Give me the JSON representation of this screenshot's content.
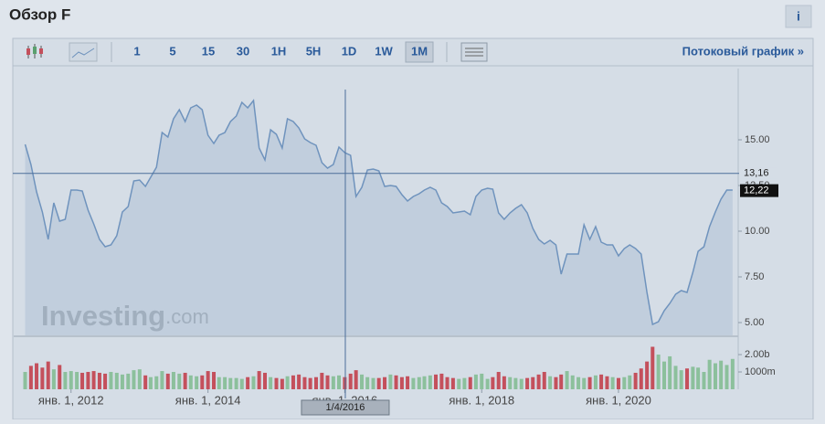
{
  "header": {
    "title": "Обзор F",
    "info": "i"
  },
  "toolbar": {
    "intervals": [
      "1",
      "5",
      "15",
      "30",
      "1H",
      "5H",
      "1D",
      "1W",
      "1M"
    ],
    "active_interval": "1M",
    "stream_link": "Потоковый график »"
  },
  "chart_data": {
    "type": "line",
    "watermark": {
      "brand": "Investing",
      "suffix": ".com"
    },
    "x": [
      "2011-05-01",
      "2011-06-01",
      "2011-07-01",
      "2011-08-01",
      "2011-09-01",
      "2011-10-01",
      "2011-11-01",
      "2011-12-01",
      "2012-01-01",
      "2012-02-01",
      "2012-03-01",
      "2012-04-01",
      "2012-05-01",
      "2012-06-01",
      "2012-07-01",
      "2012-08-01",
      "2012-09-01",
      "2012-10-01",
      "2012-11-01",
      "2012-12-01",
      "2013-01-01",
      "2013-02-01",
      "2013-03-01",
      "2013-04-01",
      "2013-05-01",
      "2013-06-01",
      "2013-07-01",
      "2013-08-01",
      "2013-09-01",
      "2013-10-01",
      "2013-11-01",
      "2013-12-01",
      "2014-01-01",
      "2014-02-01",
      "2014-03-01",
      "2014-04-01",
      "2014-05-01",
      "2014-06-01",
      "2014-07-01",
      "2014-08-01",
      "2014-09-01",
      "2014-10-01",
      "2014-11-01",
      "2014-12-01",
      "2015-01-01",
      "2015-02-01",
      "2015-03-01",
      "2015-04-01",
      "2015-05-01",
      "2015-06-01",
      "2015-07-01",
      "2015-08-01",
      "2015-09-01",
      "2015-10-01",
      "2015-11-01",
      "2015-12-01",
      "2016-01-01",
      "2016-02-01",
      "2016-03-01",
      "2016-04-01",
      "2016-05-01",
      "2016-06-01",
      "2016-07-01",
      "2016-08-01",
      "2016-09-01",
      "2016-10-01",
      "2016-11-01",
      "2016-12-01",
      "2017-01-01",
      "2017-02-01",
      "2017-03-01",
      "2017-04-01",
      "2017-05-01",
      "2017-06-01",
      "2017-07-01",
      "2017-08-01",
      "2017-09-01",
      "2017-10-01",
      "2017-11-01",
      "2017-12-01",
      "2018-01-01",
      "2018-02-01",
      "2018-03-01",
      "2018-04-01",
      "2018-05-01",
      "2018-06-01",
      "2018-07-01",
      "2018-08-01",
      "2018-09-01",
      "2018-10-01",
      "2018-11-01",
      "2018-12-01",
      "2019-01-01",
      "2019-02-01",
      "2019-03-01",
      "2019-04-01",
      "2019-05-01",
      "2019-06-01",
      "2019-07-01",
      "2019-08-01",
      "2019-09-01",
      "2019-10-01",
      "2019-11-01",
      "2019-12-01",
      "2020-01-01",
      "2020-02-01",
      "2020-03-01",
      "2020-04-01",
      "2020-05-01",
      "2020-06-01",
      "2020-07-01",
      "2020-08-01",
      "2020-09-01",
      "2020-10-01",
      "2020-11-01",
      "2020-12-01",
      "2021-01-01",
      "2021-02-01",
      "2021-03-01",
      "2021-04-01",
      "2021-05-01",
      "2021-06-01",
      "2021-07-01",
      "2021-08-01",
      "2021-09-01"
    ],
    "series": [
      {
        "color": "#6f93bd",
        "values": [
          14.75,
          13.65,
          12.15,
          11.05,
          9.55,
          11.55,
          10.55,
          10.65,
          12.25,
          12.25,
          12.2,
          11.15,
          10.4,
          9.55,
          9.15,
          9.25,
          9.75,
          11.05,
          11.35,
          12.75,
          12.8,
          12.45,
          12.95,
          13.5,
          15.4,
          15.15,
          16.15,
          16.65,
          16.0,
          16.75,
          16.9,
          16.65,
          15.25,
          14.8,
          15.25,
          15.4,
          16.0,
          16.3,
          17.05,
          16.75,
          17.15,
          14.55,
          13.9,
          15.55,
          15.3,
          14.55,
          16.15,
          16.0,
          15.65,
          15.05,
          14.85,
          14.7,
          13.75,
          13.45,
          13.65,
          14.6,
          14.3,
          14.15,
          11.9,
          12.4,
          13.35,
          13.4,
          13.3,
          12.45,
          12.5,
          12.45,
          12.0,
          11.65,
          11.9,
          12.05,
          12.25,
          12.4,
          12.25,
          11.55,
          11.35,
          11.0,
          11.05,
          11.1,
          10.9,
          11.9,
          12.25,
          12.35,
          12.3,
          11.0,
          10.65,
          11.0,
          11.25,
          11.45,
          11.0,
          10.15,
          9.55,
          9.3,
          9.5,
          9.25,
          7.65,
          8.75,
          8.75,
          8.75,
          10.35,
          9.55,
          10.25,
          9.4,
          9.25,
          9.25,
          8.65,
          9.05,
          9.25,
          9.05,
          8.75,
          6.65,
          4.9,
          5.05,
          5.65,
          6.05,
          6.55,
          6.75,
          6.65,
          7.75,
          8.9,
          9.15,
          10.25,
          11.05,
          11.75,
          12.25,
          12.25
        ]
      },
      {
        "axis": "y2",
        "up_color": "#8cc09c",
        "down_color": "#c4505c",
        "values": [
          1000,
          1350,
          1500,
          1250,
          1600,
          1150,
          1400,
          1000,
          1050,
          1000,
          950,
          1000,
          1050,
          950,
          900,
          1000,
          950,
          850,
          900,
          1100,
          1150,
          800,
          700,
          750,
          1050,
          900,
          1000,
          900,
          950,
          800,
          750,
          800,
          1050,
          1000,
          700,
          700,
          650,
          650,
          600,
          700,
          750,
          1050,
          950,
          700,
          650,
          600,
          750,
          800,
          850,
          700,
          650,
          700,
          950,
          800,
          750,
          800,
          700,
          900,
          1100,
          850,
          700,
          650,
          650,
          700,
          850,
          800,
          700,
          750,
          650,
          700,
          750,
          800,
          850,
          900,
          700,
          650,
          600,
          650,
          700,
          850,
          900,
          600,
          700,
          1000,
          750,
          700,
          650,
          600,
          650,
          700,
          850,
          1000,
          750,
          700,
          850,
          1050,
          800,
          700,
          650,
          700,
          800,
          850,
          750,
          700,
          650,
          700,
          800,
          950,
          1200,
          1600,
          2450,
          2000,
          1600,
          1900,
          1350,
          1100,
          1200,
          1300,
          1250,
          1000,
          1700,
          1500,
          1650,
          1400,
          1750
        ]
      }
    ],
    "xlim": [
      "2011-03-01",
      "2021-10-01"
    ],
    "xticks": [
      {
        "value": "2012-01-01",
        "label": "янв. 1, 2012"
      },
      {
        "value": "2014-01-01",
        "label": "янв. 1, 2014"
      },
      {
        "value": "2016-01-01",
        "label": "янв. 1, 2016"
      },
      {
        "value": "2018-01-01",
        "label": "янв. 1, 2018"
      },
      {
        "value": "2020-01-01",
        "label": "янв. 1, 2020"
      }
    ],
    "ylim": [
      4.3,
      18.9
    ],
    "yticks": [
      {
        "value": 5,
        "label": "5.00"
      },
      {
        "value": 7.5,
        "label": "7.50"
      },
      {
        "value": 10,
        "label": "10.00"
      },
      {
        "value": 12.5,
        "label": "12.50"
      },
      {
        "value": 15,
        "label": "15.00"
      }
    ],
    "y2lim": [
      0,
      2950
    ],
    "y2ticks": [
      {
        "value": 1000,
        "label": "1000m"
      },
      {
        "value": 2000,
        "label": "2.00b"
      }
    ],
    "crosshair": {
      "x": "2016-01-04",
      "x_label": "1/4/2016",
      "value": 13.16,
      "label": "13,16"
    },
    "last_price": {
      "value": 12.22,
      "label": "12,22"
    }
  }
}
